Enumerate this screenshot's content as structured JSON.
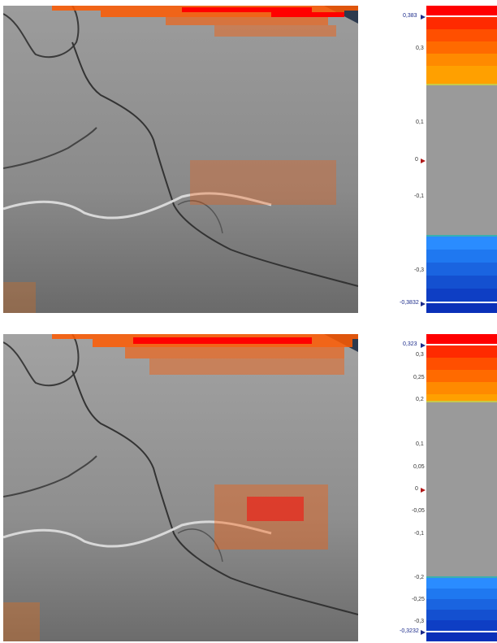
{
  "panels": [
    {
      "id": "top",
      "max_label": "0,383",
      "min_label": "-0,3832",
      "zero_label": "0",
      "tick_labels": [
        "0,3",
        "0,1",
        "-0,1",
        "-0,3"
      ],
      "colors": {
        "positive": [
          "#ff0000",
          "#ff2a00",
          "#ff4f00",
          "#ff6a00",
          "#ff8a00",
          "#ffa000"
        ],
        "negative": [
          "#2a8cff",
          "#1f78f0",
          "#1a64e0",
          "#1450d0",
          "#0e3ec4",
          "#0a30b8"
        ]
      }
    },
    {
      "id": "bottom",
      "max_label": "0,323",
      "min_label": "-0,3232",
      "zero_label": "0",
      "tick_labels": [
        "0,3",
        "0,25",
        "0,2",
        "0,1",
        "0,05",
        "-0,05",
        "-0,1",
        "-0,2",
        "-0,25",
        "-0,3"
      ],
      "colors": {
        "positive": [
          "#ff0000",
          "#ff2a00",
          "#ff4f00",
          "#ff6a00",
          "#ff8a00",
          "#ffa000"
        ],
        "negative": [
          "#2a8cff",
          "#1f78f0",
          "#1a64e0",
          "#1450d0",
          "#0e3ec4",
          "#0a30b8"
        ]
      }
    }
  ]
}
